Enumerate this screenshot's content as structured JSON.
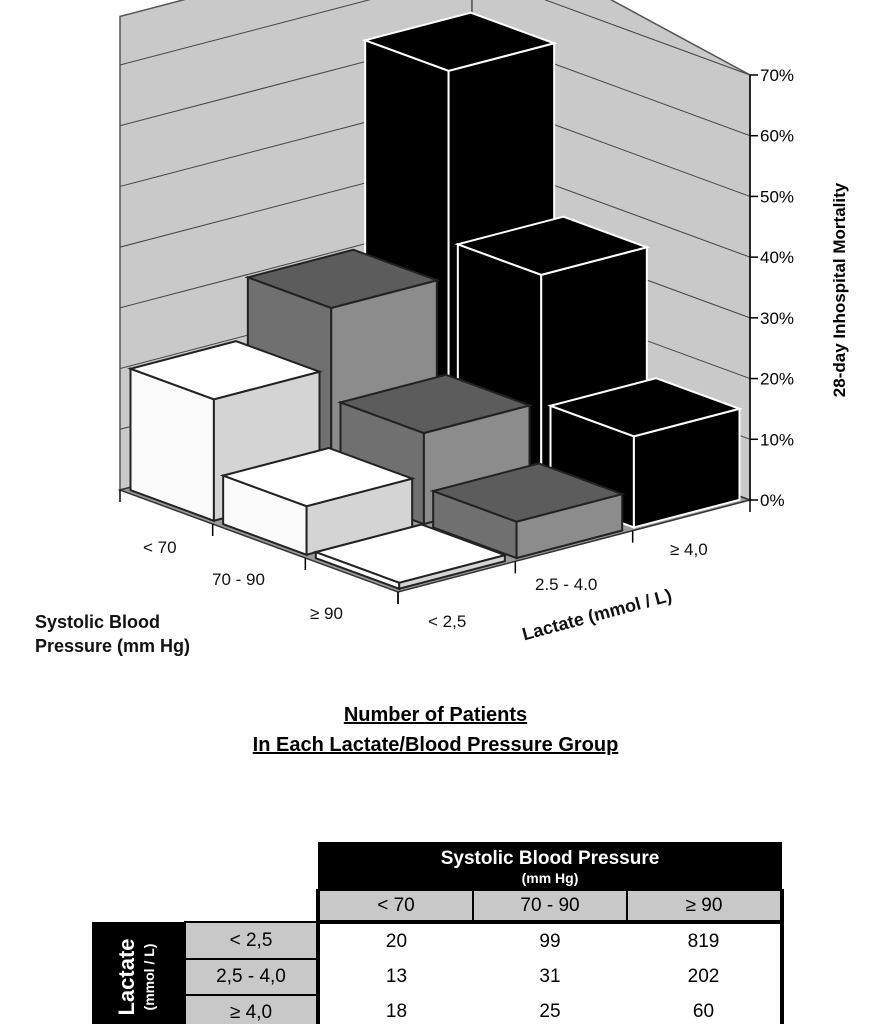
{
  "chart_data": {
    "type": "bar3d",
    "ylabel": "28-day Inhospital Mortality",
    "ylim": [
      0,
      70
    ],
    "yticks": [
      "0%",
      "10%",
      "20%",
      "30%",
      "40%",
      "50%",
      "60%",
      "70%"
    ],
    "x_axis": {
      "title_line1": "Systolic Blood",
      "title_line2": "Pressure (mm Hg)",
      "categories": [
        "< 70",
        "70 - 90",
        "≥ 90"
      ]
    },
    "z_axis": {
      "title": "Lactate (mmol / L)",
      "categories": [
        "< 2,5",
        "2.5 - 4.0",
        "≥ 4,0"
      ]
    },
    "series": [
      {
        "name": "< 2,5",
        "color": "#ffffff",
        "side": "#d4d4d4",
        "values": [
          20,
          8,
          1
        ]
      },
      {
        "name": "2.5 - 4.0",
        "color": "#707070",
        "side": "#8c8c8c",
        "values": [
          30,
          15,
          6
        ]
      },
      {
        "name": "≥ 4,0",
        "color": "#000000",
        "side": "#000000",
        "values": [
          64,
          36,
          15
        ]
      }
    ]
  },
  "table": {
    "title_line1": "Number of Patients",
    "title_line2": "In Each Lactate/Blood Pressure Group",
    "col_group": "Systolic Blood Pressure",
    "col_group_unit": "(mm Hg)",
    "columns": [
      "< 70",
      "70 - 90",
      "≥ 90"
    ],
    "row_group": "Lactate",
    "row_group_unit": "(mmol / L)",
    "rows": [
      {
        "label": "< 2,5",
        "values": [
          "20",
          "99",
          "819"
        ]
      },
      {
        "label": "2,5 - 4,0",
        "values": [
          "13",
          "31",
          "202"
        ]
      },
      {
        "label": "≥ 4,0",
        "values": [
          "18",
          "25",
          "60"
        ]
      }
    ]
  }
}
